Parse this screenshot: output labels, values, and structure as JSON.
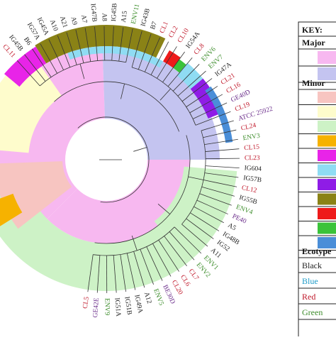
{
  "colors": {
    "major_pink": "#f7b8f0",
    "major_lavender": "#c4c4f0",
    "olive": "#8a8216",
    "magenta": "#e824e8",
    "cream": "#fefccc",
    "light_green": "#cdf2c6",
    "peach": "#f7c5c1",
    "orange": "#f6b200",
    "red": "#ee1a1a",
    "green": "#3ac33a",
    "sky": "#8fdcf3",
    "purple": "#8f1ce6",
    "blue": "#4a8ed8",
    "label_black": "#222222",
    "label_blue": "#1e9bc8",
    "label_red": "#c0182a",
    "label_green": "#3d8d2b",
    "label_purple": "#6a2c8a"
  },
  "leaves": [
    {
      "label": "CL11",
      "color": "label_red"
    },
    {
      "label": "IG45B",
      "color": "label_black"
    },
    {
      "label": "B6",
      "color": "label_black"
    },
    {
      "label": "IG57A",
      "color": "label_black"
    },
    {
      "label": "IG45A",
      "color": "label_black"
    },
    {
      "label": "A10",
      "color": "label_black"
    },
    {
      "label": "A21",
      "color": "label_black"
    },
    {
      "label": "A9",
      "color": "label_black"
    },
    {
      "label": "A7",
      "color": "label_black"
    },
    {
      "label": "IG47B",
      "color": "label_black"
    },
    {
      "label": "A8",
      "color": "label_black"
    },
    {
      "label": "IG45B",
      "color": "label_black"
    },
    {
      "label": "A15",
      "color": "label_black"
    },
    {
      "label": "ENV11",
      "color": "label_green"
    },
    {
      "label": "IG43B",
      "color": "label_black"
    },
    {
      "label": "B7",
      "color": "label_black"
    },
    {
      "label": "CL1",
      "color": "label_red"
    },
    {
      "label": "CL2",
      "color": "label_red"
    },
    {
      "label": "CL10",
      "color": "label_red"
    },
    {
      "label": "IG54A",
      "color": "label_black"
    },
    {
      "label": "CL8",
      "color": "label_red"
    },
    {
      "label": "ENV6",
      "color": "label_green"
    },
    {
      "label": "ENV7",
      "color": "label_green"
    },
    {
      "label": "IG47A",
      "color": "label_black"
    },
    {
      "label": "CL21",
      "color": "label_red"
    },
    {
      "label": "CL16",
      "color": "label_red"
    },
    {
      "label": "GE40D",
      "color": "label_purple"
    },
    {
      "label": "CL19",
      "color": "label_red"
    },
    {
      "label": "ATCC 25922",
      "color": "label_purple"
    },
    {
      "label": "CL24",
      "color": "label_red"
    },
    {
      "label": "ENV3",
      "color": "label_green"
    },
    {
      "label": "CL15",
      "color": "label_red"
    },
    {
      "label": "CL23",
      "color": "label_red"
    },
    {
      "label": "IG604",
      "color": "label_black"
    },
    {
      "label": "IG57B",
      "color": "label_black"
    },
    {
      "label": "CL12",
      "color": "label_red"
    },
    {
      "label": "IG55B",
      "color": "label_black"
    },
    {
      "label": "ENV4",
      "color": "label_green"
    },
    {
      "label": "PE40",
      "color": "label_purple"
    },
    {
      "label": "A5",
      "color": "label_black"
    },
    {
      "label": "IG48B",
      "color": "label_black"
    },
    {
      "label": "IG52",
      "color": "label_black"
    },
    {
      "label": "A11",
      "color": "label_black"
    },
    {
      "label": "ENV1",
      "color": "label_green"
    },
    {
      "label": "ENV2",
      "color": "label_green"
    },
    {
      "label": "CL7",
      "color": "label_red"
    },
    {
      "label": "CL6",
      "color": "label_red"
    },
    {
      "label": "CL20",
      "color": "label_red"
    },
    {
      "label": "BE30D",
      "color": "label_purple"
    },
    {
      "label": "ENV5",
      "color": "label_green"
    },
    {
      "label": "A12",
      "color": "label_black"
    },
    {
      "label": "IG49A",
      "color": "label_black"
    },
    {
      "label": "IG51B",
      "color": "label_black"
    },
    {
      "label": "IG51A",
      "color": "label_black"
    },
    {
      "label": "ENV9",
      "color": "label_green"
    },
    {
      "label": "GE42E",
      "color": "label_purple"
    },
    {
      "label": "CL5",
      "color": "label_red"
    }
  ],
  "key": {
    "title": "KEY:",
    "major_heading": "Major",
    "minor_heading": "Minor",
    "ecotype_heading": "Ecotype",
    "major_swatches": [
      "major_pink",
      "major_lavender"
    ],
    "minor_swatches": [
      "peach",
      "cream",
      "light_green",
      "orange",
      "magenta",
      "sky",
      "purple",
      "olive",
      "red",
      "green",
      "blue"
    ],
    "ecotypes": [
      {
        "label": "Black",
        "color": "label_black"
      },
      {
        "label": "Blue",
        "color": "label_blue"
      },
      {
        "label": "Red",
        "color": "label_red"
      },
      {
        "label": "Green",
        "color": "label_green"
      }
    ]
  }
}
